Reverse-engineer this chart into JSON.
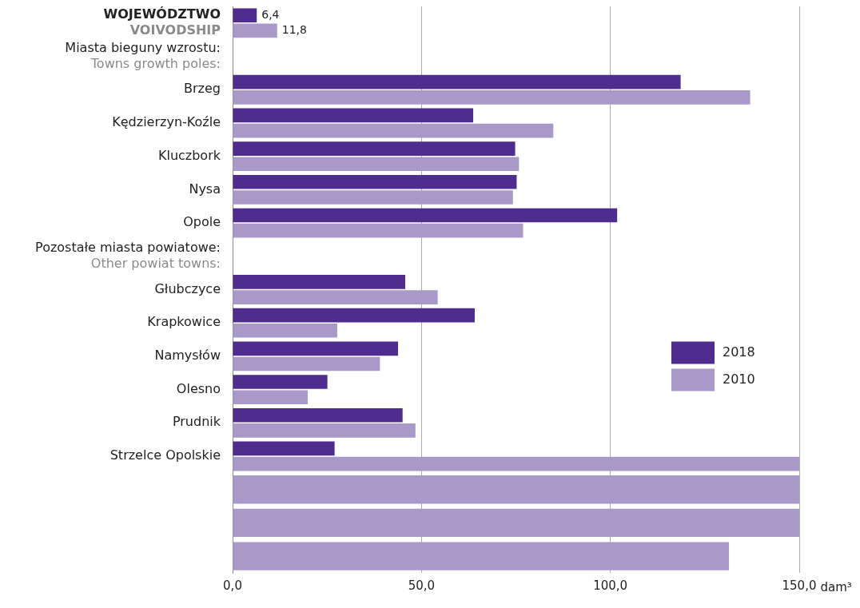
{
  "chart_data": {
    "type": "bar",
    "orientation": "horizontal",
    "xlabel": "dam³",
    "categories": [
      "WOJEWÓDZTWO\nVOIVODSHIP",
      null,
      "Brzeg",
      "Kędzierzyn-Koźle",
      "Kluczbork",
      "Nysa",
      "Opole",
      null,
      "Głubczyce",
      "Krapkowice",
      "Namysłów",
      "Olesno",
      "Prudnik",
      "Strzelce Opolskie",
      null,
      null,
      null
    ],
    "series": [
      {
        "name": "2018",
        "color": "#4f2d8f",
        "values": [
          6.4,
          null,
          118.6,
          63.7,
          74.8,
          75.2,
          101.8,
          null,
          45.7,
          64.1,
          43.8,
          25.1,
          45.0,
          27.0,
          null,
          null,
          null
        ],
        "value_labels": [
          "6,4",
          null,
          null,
          null,
          null,
          null,
          null,
          null,
          null,
          null,
          null,
          null,
          null,
          null,
          null,
          null,
          null
        ]
      },
      {
        "name": "2010",
        "color": "#a899c9",
        "values": [
          11.8,
          null,
          137.0,
          84.9,
          75.8,
          74.2,
          76.9,
          null,
          54.3,
          27.7,
          39.0,
          19.9,
          48.4,
          150,
          150,
          150,
          131.4
        ],
        "value_labels": [
          "11,8",
          null,
          null,
          null,
          null,
          null,
          null,
          null,
          null,
          null,
          null,
          null,
          null,
          null,
          null,
          null,
          null
        ]
      }
    ],
    "xlim": [
      0,
      150
    ],
    "xticks": [
      {
        "value": 0,
        "label": "0,0"
      },
      {
        "value": 50,
        "label": "50,0"
      },
      {
        "value": 100,
        "label": "100,0"
      },
      {
        "value": 150,
        "label": "150,0"
      }
    ],
    "grid": "x",
    "legend": "right",
    "annotations": [
      "Miasta bieguny wzrostu:\nTowns growth poles:",
      "Pozostałe miasta powiatowe:\nOther powiat towns:"
    ]
  }
}
